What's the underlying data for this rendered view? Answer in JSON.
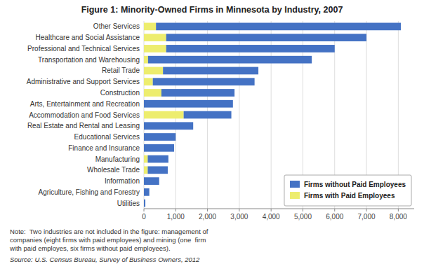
{
  "chart_data": {
    "type": "bar",
    "orientation": "horizontal",
    "stacked": true,
    "title": "Figure 1: Minority-Owned Firms in Minnesota by Industry, 2007",
    "categories": [
      "Other Services",
      "Healthcare and Social Assistance",
      "Professional and Technical Services",
      "Transportation and Warehousing",
      "Retail Trade",
      "Administrative and Support Services",
      "Construction",
      "Arts, Entertainment and Recreation",
      "Accommodation and Food Services",
      "Real Estate and Rental and Leasing",
      "Educational Services",
      "Finance and Insurance",
      "Manufacturing",
      "Wholesale Trade",
      "Information",
      "Agriculture, Fishing and Forestry",
      "Utilities"
    ],
    "series": [
      {
        "name": "Firms with Paid Employees",
        "color": "#EDED6E",
        "values": [
          380,
          700,
          700,
          130,
          600,
          280,
          550,
          0,
          1250,
          0,
          0,
          0,
          120,
          120,
          0,
          0,
          0
        ]
      },
      {
        "name": "Firms without Paid Employees",
        "color": "#4472C4",
        "values": [
          7700,
          6300,
          5300,
          5150,
          3000,
          3200,
          2300,
          2800,
          1500,
          1550,
          1000,
          950,
          650,
          630,
          480,
          170,
          45
        ]
      }
    ],
    "xlim": [
      0,
      8500
    ],
    "xticks": [
      0,
      {
        "value": 1000,
        "label": "1,000"
      },
      {
        "value": 2000,
        "label": "2,000"
      },
      {
        "value": 3000,
        "label": "3,000"
      },
      {
        "value": 4000,
        "label": "4,000"
      },
      {
        "value": 5000,
        "label": "5,000"
      },
      {
        "value": 6000,
        "label": "6,000"
      },
      {
        "value": 7000,
        "label": "7,000"
      },
      {
        "value": 8000,
        "label": "8,000"
      }
    ],
    "grid": true,
    "legend": "lower right",
    "annotations": [
      "Note:  Two industries are not included in the figure: management of\ncompanies (eight firms with paid employees) and mining (one  firm\nwith paid employes, six firms without paid employees).",
      "Source: U.S. Census Bureau, Survey of Business Owners, 2012"
    ]
  }
}
